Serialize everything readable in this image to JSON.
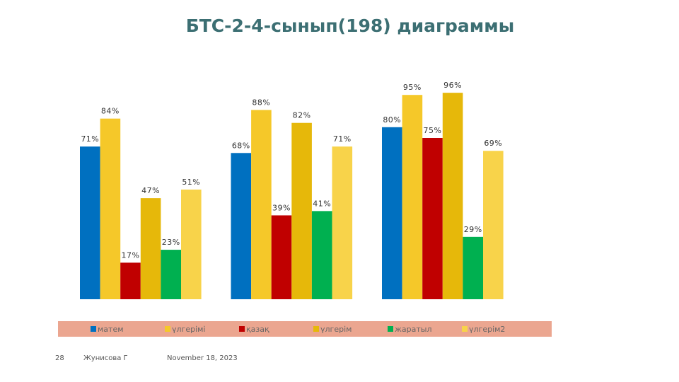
{
  "chart_data": {
    "type": "bar",
    "title": "БТС-2-4-сынып(198) диаграммы",
    "categories": [
      null,
      null,
      null
    ],
    "series": [
      {
        "name": "матем",
        "color": "#0070c0",
        "values": [
          71,
          68,
          80
        ],
        "value_labels": [
          "71%",
          "68%",
          "80%"
        ]
      },
      {
        "name": "үлгерімі",
        "color": "#f5c829",
        "values": [
          84,
          88,
          95
        ],
        "value_labels": [
          "84%",
          "88%",
          "95%"
        ]
      },
      {
        "name": "қазақ",
        "color": "#c00000",
        "values": [
          17,
          39,
          75
        ],
        "value_labels": [
          "17%",
          "39%",
          "75%"
        ]
      },
      {
        "name": "үлгерім",
        "color": "#e6b80a",
        "values": [
          47,
          82,
          96
        ],
        "value_labels": [
          "47%",
          "82%",
          "96%"
        ]
      },
      {
        "name": "жаратыл",
        "color": "#00b050",
        "values": [
          23,
          41,
          29
        ],
        "value_labels": [
          "23%",
          "41%",
          "29%"
        ]
      },
      {
        "name": "үлгерім2",
        "color": "#f8d34a",
        "values": [
          51,
          71,
          69
        ],
        "value_labels": [
          "51%",
          "71%",
          "69%"
        ]
      }
    ],
    "legend": "bottom"
  },
  "footer": {
    "page": "28",
    "author": "Жунисова Г",
    "date": "November 18, 2023"
  }
}
